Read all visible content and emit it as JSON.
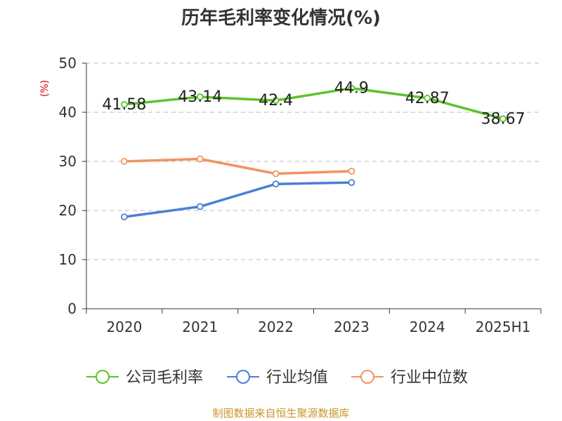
{
  "chart_data": {
    "type": "line",
    "title": "历年毛利率变化情况(%)",
    "ylabel": "(%)",
    "ylim": [
      0,
      50
    ],
    "yticks": [
      0,
      10,
      20,
      30,
      40,
      50
    ],
    "categories": [
      "2020",
      "2021",
      "2022",
      "2023",
      "2024",
      "2025H1"
    ],
    "grid": true,
    "legend_position": "bottom",
    "series": [
      {
        "name": "公司毛利率",
        "color": "#5cc32a",
        "values": [
          41.58,
          43.14,
          42.4,
          44.9,
          42.87,
          38.67
        ],
        "labels": [
          "41.58",
          "43.14",
          "42.4",
          "44.9",
          "42.87",
          "38.67"
        ]
      },
      {
        "name": "行业均值",
        "color": "#4a7fd6",
        "values": [
          18.7,
          20.8,
          25.4,
          25.7,
          null,
          null
        ]
      },
      {
        "name": "行业中位数",
        "color": "#f29360",
        "values": [
          30.0,
          30.5,
          27.5,
          28.0,
          null,
          null
        ]
      }
    ]
  },
  "footer": {
    "source": "制图数据来自恒生聚源数据库"
  }
}
